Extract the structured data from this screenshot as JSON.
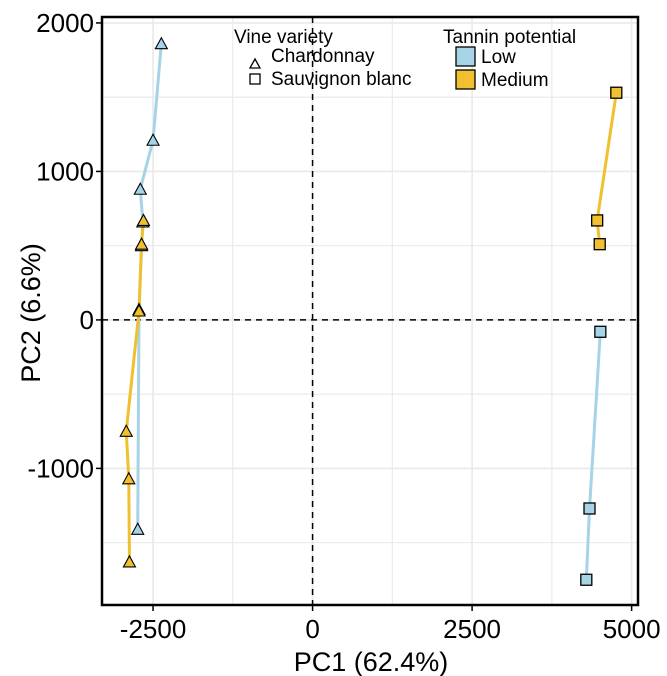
{
  "chart_data": {
    "type": "scatter",
    "xlabel": "PC1 (62.4%)",
    "ylabel": "PC2 (6.6%)",
    "xlim": [
      -3300,
      5100
    ],
    "ylim": [
      -1920,
      2040
    ],
    "xticks": [
      -2500,
      0,
      2500,
      5000
    ],
    "xtick_labels": [
      "-2500",
      "0",
      "2500",
      "5000"
    ],
    "yticks": [
      -1000,
      0,
      1000,
      2000
    ],
    "ytick_labels": [
      "-1000",
      "0",
      "1000",
      "2000"
    ],
    "grid": true,
    "reference_lines": {
      "x": 0,
      "y": 0,
      "style": "dashed"
    },
    "legend": {
      "placement": "top",
      "variety_title": "Vine variety",
      "varieties": [
        {
          "name": "Chardonnay",
          "shape": "triangle"
        },
        {
          "name": "Sauvignon blanc",
          "shape": "square"
        }
      ],
      "tannin_title": "Tannin potential",
      "tannin_levels": [
        {
          "name": "Low",
          "color": "#a6d3e6"
        },
        {
          "name": "Medium",
          "color": "#f0c030"
        }
      ]
    },
    "series": [
      {
        "name": "Low",
        "variety": "Chardonnay",
        "shape": "triangle",
        "color": "#a6d3e6",
        "points": [
          {
            "x": -2370,
            "y": 1860
          },
          {
            "x": -2500,
            "y": 1210
          },
          {
            "x": -2700,
            "y": 880
          },
          {
            "x": -2660,
            "y": 660
          },
          {
            "x": -2680,
            "y": 500
          },
          {
            "x": -2720,
            "y": 70
          },
          {
            "x": -2740,
            "y": -1410
          }
        ]
      },
      {
        "name": "Medium",
        "variety": "Chardonnay",
        "shape": "triangle",
        "color": "#f0c030",
        "points": [
          {
            "x": -2650,
            "y": 670
          },
          {
            "x": -2680,
            "y": 510
          },
          {
            "x": -2720,
            "y": 60
          },
          {
            "x": -2920,
            "y": -750
          },
          {
            "x": -2880,
            "y": -1070
          },
          {
            "x": -2870,
            "y": -1630
          }
        ]
      },
      {
        "name": "Low",
        "variety": "Sauvignon blanc",
        "shape": "square",
        "color": "#a6d3e6",
        "points": [
          {
            "x": 4510,
            "y": -80
          },
          {
            "x": 4340,
            "y": -1270
          },
          {
            "x": 4290,
            "y": -1750
          }
        ]
      },
      {
        "name": "Medium",
        "variety": "Sauvignon blanc",
        "shape": "square",
        "color": "#f0c030",
        "points": [
          {
            "x": 4760,
            "y": 1530
          },
          {
            "x": 4460,
            "y": 670
          },
          {
            "x": 4500,
            "y": 510
          }
        ]
      }
    ]
  }
}
